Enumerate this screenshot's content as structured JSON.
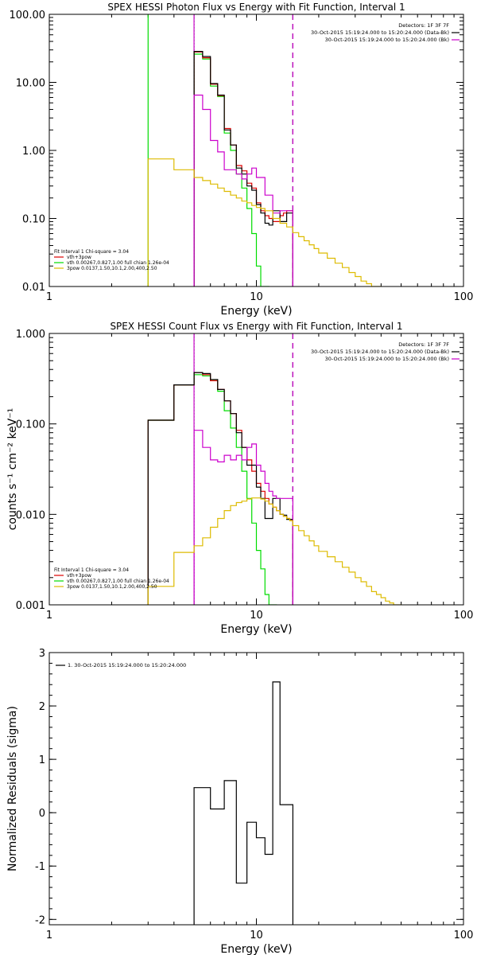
{
  "chart_data": [
    {
      "type": "line",
      "title": "SPEX HESSI Photon Flux vs Energy with Fit Function, Interval 1",
      "xlabel": "Energy (keV)",
      "ylabel": "",
      "xscale": "log",
      "yscale": "log",
      "xlim": [
        1,
        100
      ],
      "ylim": [
        0.01,
        100
      ],
      "xticks": [
        1,
        10,
        100
      ],
      "xtick_labels": [
        "1",
        "10",
        "100"
      ],
      "yticks": [
        0.01,
        0.1,
        1,
        10,
        100
      ],
      "ytick_labels": [
        "0.01",
        "0.10",
        "1.00",
        "10.00",
        "100.00"
      ],
      "legend_topright": [
        "Detectors: 1F 3F 7F",
        "30-Oct-2015 15:19:24.000 to 15:20:24.000 (Data-Bk)",
        "30-Oct-2015 15:19:24.000 to 15:20:24.000 (Bk)"
      ],
      "legend_bottomleft": [
        "Fit Interval 1   Chi-square = 3.04",
        "vth+3pow",
        "vth 0.00267,0.827,1.00  full chian 1.26e-04",
        "3pow 0.0137,1.50,10.1,2.00,400,2.50"
      ],
      "vlines": [
        {
          "x": 3.0,
          "color": "#00dd00",
          "style": "solid"
        },
        {
          "x": 5.0,
          "color": "#00aa00",
          "style": "dotted"
        },
        {
          "x": 5.0,
          "color": "#cc00cc",
          "style": "solid"
        },
        {
          "x": 15.0,
          "color": "#000000",
          "style": "dashed"
        },
        {
          "x": 15.0,
          "color": "#cc00cc",
          "style": "dashed"
        }
      ],
      "series": [
        {
          "name": "vth",
          "color": "#00dd00",
          "edges": [
            5,
            5.5,
            6,
            6.5,
            7,
            7.5,
            8,
            8.5,
            9,
            9.5,
            10,
            10.5,
            11,
            11.5
          ],
          "values": [
            26.0,
            22.0,
            8.8,
            6.2,
            1.8,
            1.0,
            0.45,
            0.28,
            0.14,
            0.06,
            0.02,
            0.009,
            0.004
          ]
        },
        {
          "name": "vth+3pow",
          "color": "#dd0000",
          "edges": [
            5,
            5.5,
            6,
            6.5,
            7,
            7.5,
            8,
            8.5,
            9,
            9.5,
            10,
            10.5,
            11,
            11.5,
            12,
            12.5,
            13,
            13.5,
            14,
            14.5,
            15
          ],
          "values": [
            28.0,
            23.0,
            9.4,
            6.4,
            2.1,
            1.2,
            0.6,
            0.5,
            0.33,
            0.28,
            0.17,
            0.13,
            0.11,
            0.1,
            0.09,
            0.09,
            0.11,
            0.12,
            0.13,
            0.13
          ]
        },
        {
          "name": "Data-Bk",
          "color": "#000000",
          "edges": [
            5,
            5.5,
            6,
            6.5,
            7,
            7.5,
            8,
            8.5,
            9,
            9.5,
            10,
            10.5,
            11,
            11.5,
            12,
            12.5,
            13,
            13.5,
            14,
            14.5,
            15
          ],
          "values": [
            28.5,
            24.0,
            9.6,
            6.5,
            2.0,
            1.2,
            0.55,
            0.45,
            0.3,
            0.26,
            0.16,
            0.12,
            0.085,
            0.08,
            0.13,
            0.13,
            0.09,
            0.09,
            0.12,
            0.12
          ]
        },
        {
          "name": "Bk",
          "color": "#cc00cc",
          "edges": [
            5,
            5.5,
            6,
            6.5,
            7,
            7.5,
            8,
            8.5,
            9,
            9.5,
            10,
            10.5,
            11,
            11.5,
            12,
            12.5,
            13,
            13.5,
            14,
            14.5,
            15
          ],
          "values": [
            6.5,
            4.0,
            1.4,
            0.95,
            0.52,
            0.52,
            0.45,
            0.38,
            0.45,
            0.55,
            0.4,
            0.4,
            0.22,
            0.22,
            0.12,
            0.12,
            0.13,
            0.13,
            0.13,
            0.13
          ]
        },
        {
          "name": "3pow",
          "color": "#ddbb00",
          "edges": [
            3,
            4,
            5,
            5.5,
            6,
            6.5,
            7,
            7.5,
            8,
            8.5,
            9,
            9.5,
            10,
            10.5,
            11,
            12,
            13,
            14,
            15,
            16,
            17,
            18,
            19,
            20,
            22,
            24,
            26,
            28,
            30,
            32,
            34,
            36,
            38,
            40
          ],
          "values": [
            0.75,
            0.52,
            0.4,
            0.36,
            0.32,
            0.28,
            0.25,
            0.22,
            0.2,
            0.18,
            0.17,
            0.155,
            0.145,
            0.14,
            0.13,
            0.1,
            0.085,
            0.075,
            0.062,
            0.054,
            0.047,
            0.041,
            0.036,
            0.031,
            0.026,
            0.022,
            0.019,
            0.016,
            0.014,
            0.012,
            0.011,
            0.0095,
            0.0085
          ]
        }
      ]
    },
    {
      "type": "line",
      "title": "SPEX HESSI Count Flux vs Energy with Fit Function, Interval 1",
      "xlabel": "Energy (keV)",
      "ylabel": "counts s⁻¹ cm⁻² keV⁻¹",
      "xscale": "log",
      "yscale": "log",
      "xlim": [
        1,
        100
      ],
      "ylim": [
        0.001,
        1
      ],
      "xticks": [
        1,
        10,
        100
      ],
      "xtick_labels": [
        "1",
        "10",
        "100"
      ],
      "yticks": [
        0.001,
        0.01,
        0.1,
        1
      ],
      "ytick_labels": [
        "0.001",
        "0.010",
        "0.100",
        "1.000"
      ],
      "legend_topright": [
        "Detectors: 1F 3F 7F",
        "30-Oct-2015 15:19:24.000 to 15:20:24.000 (Data-Bk)",
        "30-Oct-2015 15:19:24.000 to 15:20:24.000 (Bk)"
      ],
      "legend_bottomleft": [
        "Fit Interval 1   Chi-square = 3.04",
        "vth+3pow",
        "vth 0.00267,0.827,1.00  full chian 1.26e-04",
        "3pow 0.0137,1.50,10.1,2.00,400,2.50"
      ],
      "vlines": [
        {
          "x": 5.0,
          "color": "#00aa00",
          "style": "dotted"
        },
        {
          "x": 5.0,
          "color": "#cc00cc",
          "style": "solid"
        },
        {
          "x": 15.0,
          "color": "#000000",
          "style": "dashed"
        },
        {
          "x": 15.0,
          "color": "#cc00cc",
          "style": "dashed"
        }
      ],
      "series": [
        {
          "name": "vth",
          "color": "#00dd00",
          "edges": [
            3,
            4,
            5,
            5.5,
            6,
            6.5,
            7,
            7.5,
            8,
            8.5,
            9,
            9.5,
            10,
            10.5,
            11,
            11.5,
            12,
            12.5
          ],
          "values": [
            0.11,
            0.27,
            0.35,
            0.34,
            0.3,
            0.23,
            0.14,
            0.09,
            0.055,
            0.03,
            0.015,
            0.008,
            0.004,
            0.0025,
            0.0013,
            0.001,
            0.0005
          ]
        },
        {
          "name": "vth+3pow",
          "color": "#dd0000",
          "edges": [
            3,
            4,
            5,
            5.5,
            6,
            6.5,
            7,
            7.5,
            8,
            8.5,
            9,
            9.5,
            10,
            10.5,
            11,
            11.5,
            12,
            12.5,
            13,
            13.5,
            14,
            14.5,
            15
          ],
          "values": [
            0.11,
            0.27,
            0.37,
            0.35,
            0.3,
            0.24,
            0.18,
            0.13,
            0.085,
            0.055,
            0.04,
            0.03,
            0.022,
            0.018,
            0.015,
            0.013,
            0.012,
            0.011,
            0.01,
            0.0095,
            0.009,
            0.0088
          ]
        },
        {
          "name": "Data-Bk",
          "color": "#000000",
          "edges": [
            3,
            4,
            5,
            5.5,
            6,
            6.5,
            7,
            7.5,
            8,
            8.5,
            9,
            9.5,
            10,
            10.5,
            11,
            11.5,
            12,
            12.5,
            13,
            13.5,
            14,
            14.5,
            15
          ],
          "values": [
            0.11,
            0.27,
            0.37,
            0.36,
            0.31,
            0.24,
            0.18,
            0.13,
            0.08,
            0.055,
            0.035,
            0.035,
            0.02,
            0.015,
            0.009,
            0.009,
            0.015,
            0.015,
            0.01,
            0.0098,
            0.0088,
            0.0088
          ]
        },
        {
          "name": "Bk",
          "color": "#cc00cc",
          "edges": [
            5,
            5.5,
            6,
            6.5,
            7,
            7.5,
            8,
            8.5,
            9,
            9.5,
            10,
            10.5,
            11,
            11.5,
            12,
            12.5,
            13,
            13.5,
            14,
            14.5,
            15
          ],
          "values": [
            0.085,
            0.055,
            0.04,
            0.038,
            0.045,
            0.04,
            0.045,
            0.04,
            0.055,
            0.06,
            0.035,
            0.03,
            0.022,
            0.018,
            0.016,
            0.015,
            0.015,
            0.015,
            0.015,
            0.015
          ]
        },
        {
          "name": "3pow",
          "color": "#ddbb00",
          "edges": [
            3,
            4,
            5,
            5.5,
            6,
            6.5,
            7,
            7.5,
            8,
            8.5,
            9,
            9.5,
            10,
            10.5,
            11,
            11.5,
            12,
            12.5,
            13,
            13.5,
            14,
            14.5,
            15,
            16,
            17,
            18,
            19,
            20,
            22,
            24,
            26,
            28,
            30,
            32,
            34,
            36,
            38,
            40,
            42,
            44,
            46,
            48,
            50
          ],
          "values": [
            0.0016,
            0.0038,
            0.0045,
            0.0055,
            0.0072,
            0.009,
            0.011,
            0.0125,
            0.0135,
            0.014,
            0.0148,
            0.0152,
            0.0152,
            0.0148,
            0.014,
            0.013,
            0.012,
            0.011,
            0.01,
            0.0095,
            0.009,
            0.0085,
            0.0075,
            0.0066,
            0.0058,
            0.0051,
            0.0045,
            0.0039,
            0.0034,
            0.003,
            0.0026,
            0.0023,
            0.002,
            0.0018,
            0.0016,
            0.0014,
            0.0013,
            0.0012,
            0.0011,
            0.00105,
            0.001,
            0.0009
          ]
        }
      ]
    },
    {
      "type": "line",
      "title": "",
      "xlabel": "Energy (keV)",
      "ylabel": "Normalized Residuals (sigma)",
      "xscale": "log",
      "yscale": "linear",
      "xlim": [
        1,
        100
      ],
      "ylim": [
        -2.1,
        3
      ],
      "xticks": [
        1,
        10,
        100
      ],
      "xtick_labels": [
        "1",
        "10",
        "100"
      ],
      "yticks": [
        -2,
        -1,
        0,
        1,
        2,
        3
      ],
      "ytick_labels": [
        "-2",
        "-1",
        "0",
        "1",
        "2",
        "3"
      ],
      "legend_topleft": [
        "1. 30-Oct-2015 15:19:24.000 to 15:20:24.000"
      ],
      "series": [
        {
          "name": "1. 30-Oct-2015 15:19:24.000 to 15:20:24.000",
          "color": "#000000",
          "edges": [
            5,
            6,
            7,
            8,
            9,
            10,
            11,
            12,
            13,
            14,
            15
          ],
          "values": [
            0.47,
            0.07,
            0.6,
            -1.32,
            -0.18,
            -0.47,
            -0.78,
            2.45,
            0.15,
            0.15
          ]
        }
      ]
    }
  ]
}
